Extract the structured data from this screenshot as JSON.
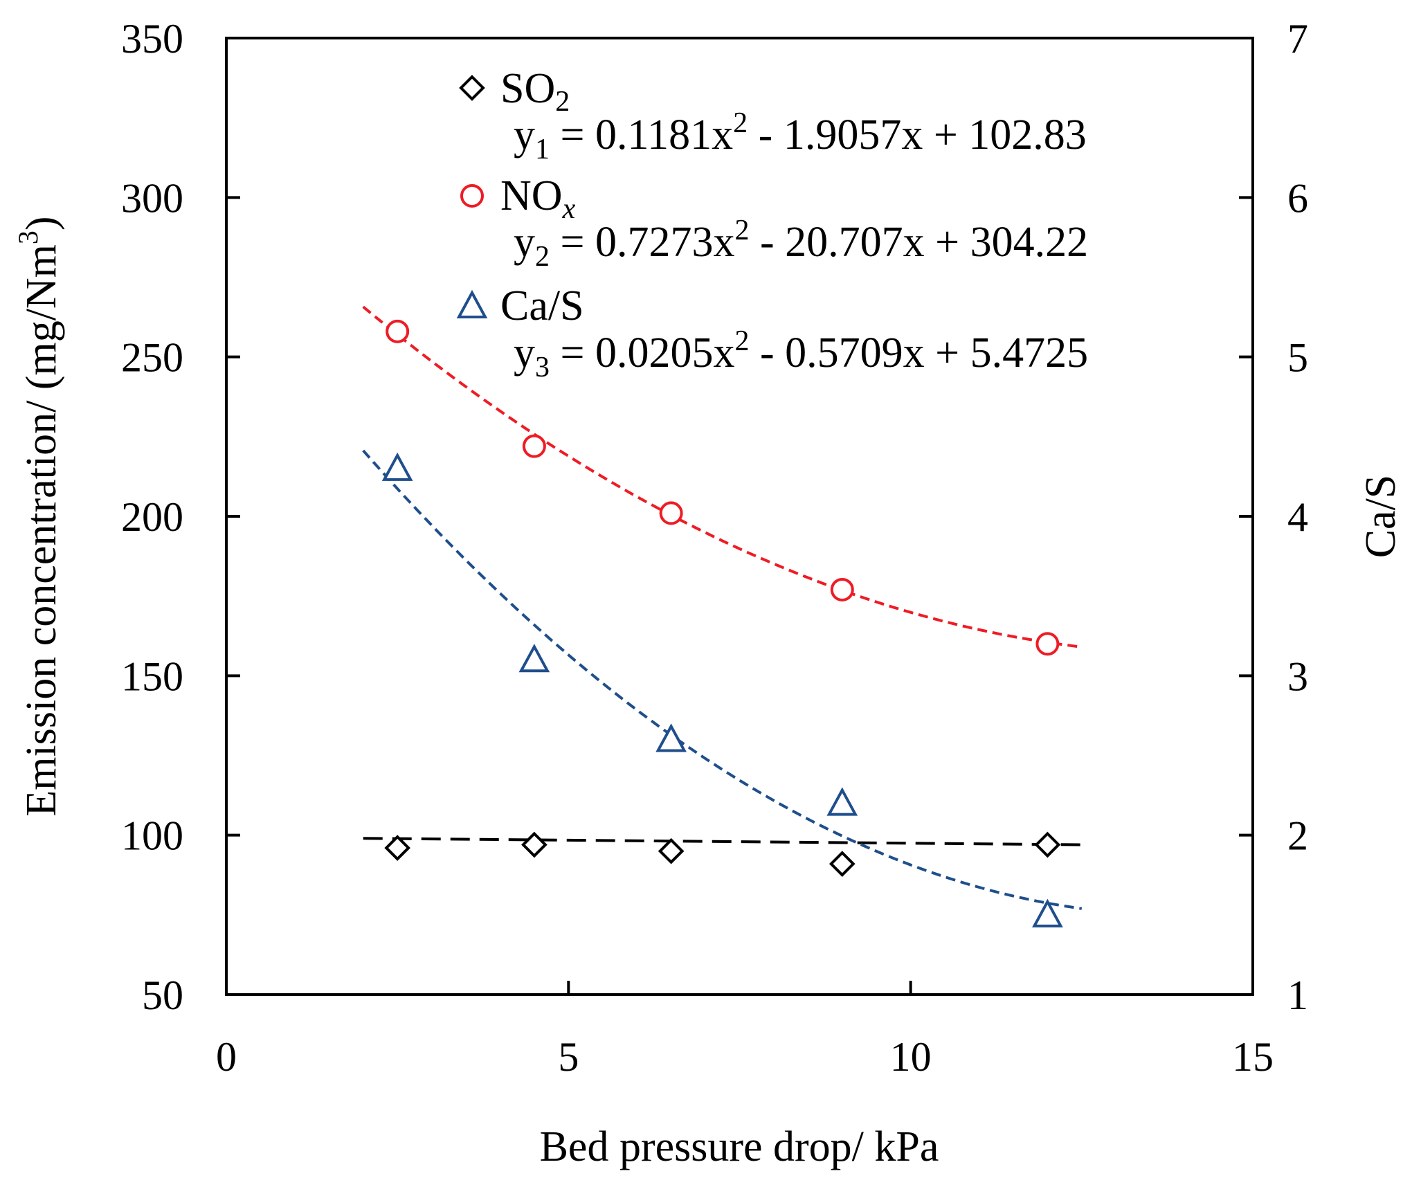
{
  "chart_data": {
    "type": "scatter",
    "xlabel": "Bed pressure drop/ kPa",
    "ylabel": "Emission concentration/ (mg/Nm",
    "ylabel_sup": "3",
    "ylabel_end": ")",
    "y2label": "Ca/S",
    "xlim": [
      0,
      15
    ],
    "ylim": [
      50,
      350
    ],
    "y2lim": [
      1,
      7
    ],
    "x_ticks": [
      "0",
      "5",
      "10",
      "15"
    ],
    "y_ticks": [
      "50",
      "100",
      "150",
      "200",
      "250",
      "300",
      "350"
    ],
    "y2_ticks": [
      "1",
      "2",
      "3",
      "4",
      "5",
      "6",
      "7"
    ],
    "grid": false,
    "legend_position": "top-right",
    "series": [
      {
        "name": "SO",
        "name_sub": "2",
        "axis": "left",
        "marker": "diamond",
        "color": "#000000",
        "x": [
          2.5,
          4.5,
          6.5,
          9.0,
          12.0
        ],
        "y": [
          96,
          97,
          95,
          91,
          97
        ],
        "fit": {
          "a": 0.1181,
          "b": -1.9057,
          "c": 102.83,
          "y_start": 99,
          "y_end": 97,
          "eq_y": "y",
          "eq_sub": "1",
          "eq_rest1": " = 0.1181x",
          "eq_sup": "2",
          "eq_rest2": " - 1.9057x + 102.83"
        }
      },
      {
        "name": "NO",
        "name_sub": "x",
        "axis": "left",
        "marker": "circle",
        "color": "#ee1c25",
        "x": [
          2.5,
          4.5,
          6.5,
          9.0,
          12.0
        ],
        "y": [
          258,
          222,
          201,
          177,
          160
        ],
        "fit": {
          "a": 0.7273,
          "b": -20.707,
          "c": 304.22,
          "eq_y": "y",
          "eq_sub": "2",
          "eq_rest1": " = 0.7273x",
          "eq_sup": "2",
          "eq_rest2": " - 20.707x + 304.22"
        }
      },
      {
        "name": "Ca/S",
        "axis": "right",
        "marker": "triangle",
        "color": "#1f4e8c",
        "x": [
          2.5,
          4.5,
          6.5,
          9.0,
          12.0
        ],
        "y": [
          4.3,
          3.1,
          2.6,
          2.2,
          1.5
        ],
        "fit": {
          "a": 0.0205,
          "b": -0.5709,
          "c": 5.4725,
          "eq_y": "y",
          "eq_sub": "3",
          "eq_rest1": " = 0.0205x",
          "eq_sup": "2",
          "eq_rest2": " - 0.5709x + 5.4725"
        }
      }
    ]
  }
}
